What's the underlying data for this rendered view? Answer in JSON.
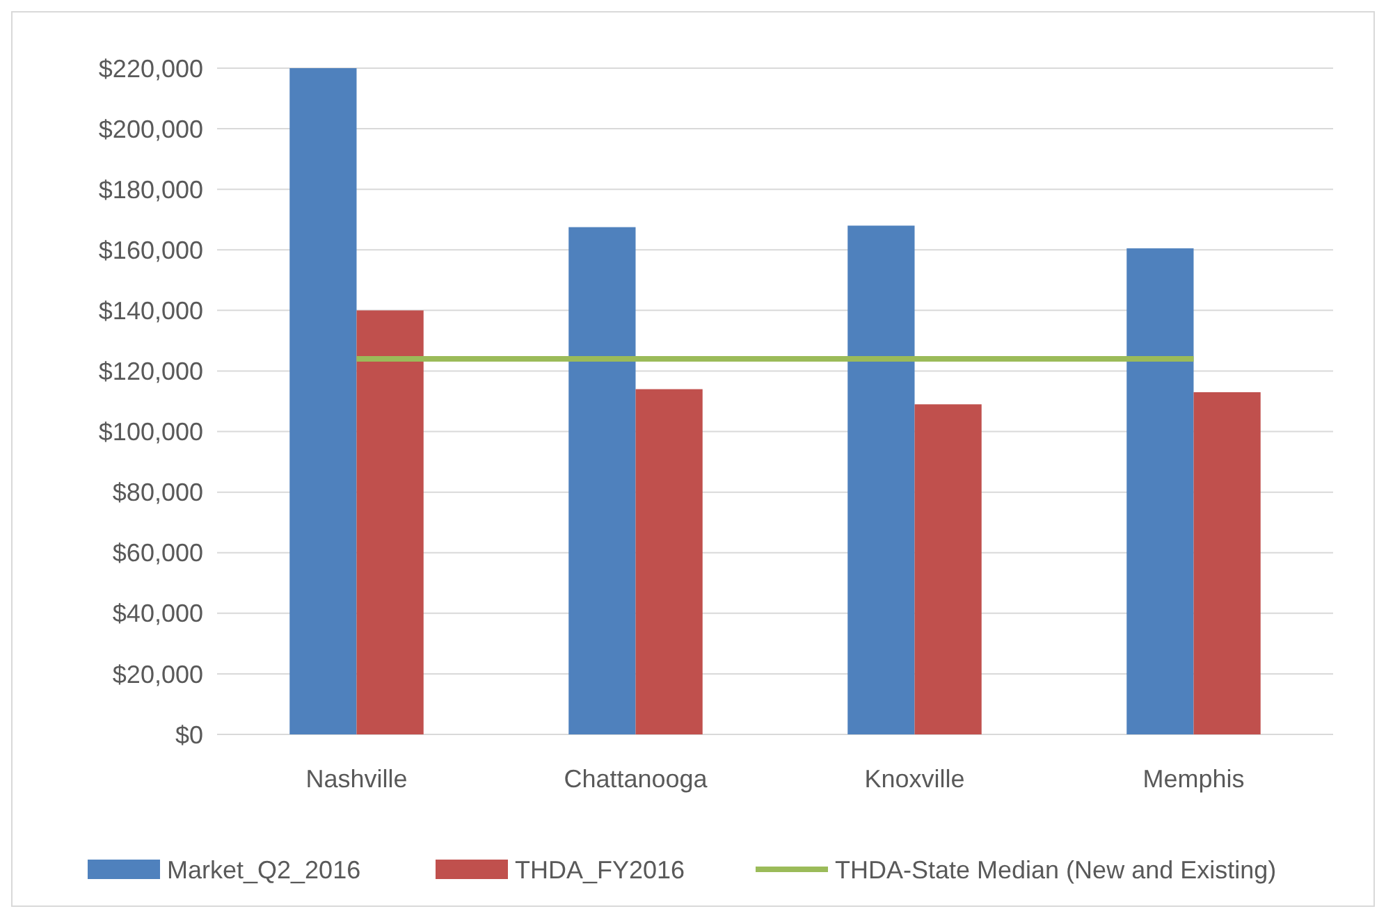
{
  "chart_data": {
    "type": "bar",
    "categories": [
      "Nashville",
      "Chattanooga",
      "Knoxville",
      "Memphis"
    ],
    "series": [
      {
        "name": "Market_Q2_2016",
        "color": "#4f81bd",
        "values": [
          220000,
          167500,
          168000,
          160500
        ]
      },
      {
        "name": "THDA_FY2016",
        "color": "#c0504d",
        "values": [
          140000,
          114000,
          109000,
          113000
        ]
      },
      {
        "name": "THDA-State Median (New and Existing)",
        "type": "line",
        "color": "#9bbb59",
        "values": [
          124000,
          124000,
          124000,
          124000
        ]
      }
    ],
    "ylim": [
      0,
      220000
    ],
    "yticks": [
      {
        "value": 0,
        "label": "$0"
      },
      {
        "value": 20000,
        "label": "$20,000"
      },
      {
        "value": 40000,
        "label": "$40,000"
      },
      {
        "value": 60000,
        "label": "$60,000"
      },
      {
        "value": 80000,
        "label": "$80,000"
      },
      {
        "value": 100000,
        "label": "$100,000"
      },
      {
        "value": 120000,
        "label": "$120,000"
      },
      {
        "value": 140000,
        "label": "$140,000"
      },
      {
        "value": 160000,
        "label": "$160,000"
      },
      {
        "value": 180000,
        "label": "$180,000"
      },
      {
        "value": 200000,
        "label": "$200,000"
      },
      {
        "value": 220000,
        "label": "$220,000"
      }
    ],
    "grid": "y",
    "legend": "bottom",
    "marker": "none",
    "line_style": "solid"
  }
}
